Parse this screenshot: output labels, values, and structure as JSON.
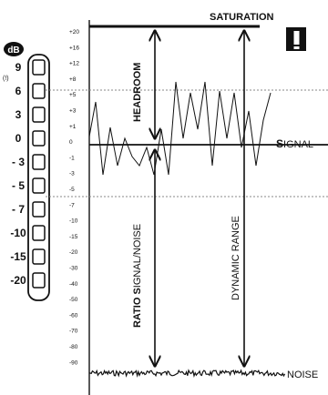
{
  "meter": {
    "unit": "dB",
    "peak_mark": "(!)",
    "readings": [
      "9",
      "6",
      "3",
      "0",
      "- 3",
      "- 5",
      "- 7",
      "-10",
      "-15",
      "-20"
    ]
  },
  "scale": [
    "+20",
    "+16",
    "+12",
    "+8",
    "+5",
    "+3",
    "+1",
    "0",
    "-1",
    "-3",
    "-5",
    "-7",
    "-10",
    "-15",
    "-20",
    "-30",
    "-40",
    "-50",
    "-60",
    "-70",
    "-80",
    "-90"
  ],
  "labels": {
    "saturation": "SATURATION",
    "warning": "!",
    "headroom": "HEADROOM",
    "signal": "SIGNAL",
    "ratio": "RATIO SIGNAL/NOISE",
    "dynamic_range": "DYNAMIC RANGE",
    "noise": "NOISE"
  },
  "colors": {
    "ink": "#111111",
    "dotted": "#888888"
  }
}
